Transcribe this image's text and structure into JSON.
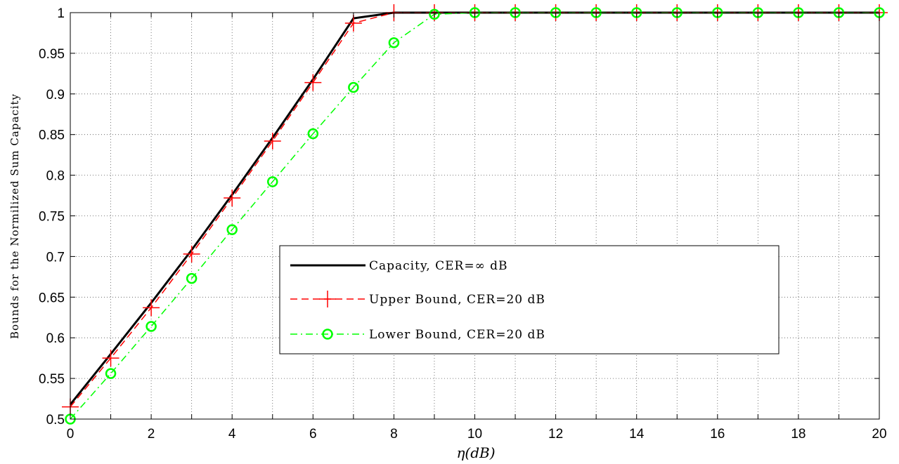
{
  "chart_data": {
    "type": "line",
    "xlabel": "η(dB)",
    "ylabel": "Bounds for the Normilized Sum Capacity",
    "xlim": [
      0,
      20
    ],
    "ylim": [
      0.5,
      1
    ],
    "xticks": [
      "0",
      "2",
      "4",
      "6",
      "8",
      "10",
      "12",
      "14",
      "16",
      "18",
      "20"
    ],
    "yticks": [
      "0.5",
      "0.55",
      "0.6",
      "0.65",
      "0.7",
      "0.75",
      "0.8",
      "0.85",
      "0.9",
      "0.95",
      "1"
    ],
    "grid": true,
    "legend_position": "center-right",
    "x": [
      0,
      1,
      2,
      3,
      4,
      5,
      6,
      7,
      8,
      9,
      10,
      11,
      12,
      13,
      14,
      15,
      16,
      17,
      18,
      19,
      20
    ],
    "series": [
      {
        "name": "Capacity, CER=∞ dB",
        "color": "#000000",
        "style": "solid",
        "marker": "none",
        "values": [
          0.518,
          0.58,
          0.643,
          0.708,
          0.776,
          0.846,
          0.918,
          0.993,
          1,
          1,
          1,
          1,
          1,
          1,
          1,
          1,
          1,
          1,
          1,
          1,
          1
        ]
      },
      {
        "name": "Upper Bound, CER=20 dB",
        "color": "#ff0000",
        "style": "dashed",
        "marker": "plus",
        "values": [
          0.515,
          0.575,
          0.637,
          0.703,
          0.772,
          0.842,
          0.914,
          0.987,
          1,
          1,
          1,
          1,
          1,
          1,
          1,
          1,
          1,
          1,
          1,
          1,
          1
        ]
      },
      {
        "name": "Lower Bound, CER=20 dB",
        "color": "#00ff00",
        "style": "dashdot",
        "marker": "circle",
        "values": [
          0.5,
          0.556,
          0.614,
          0.673,
          0.733,
          0.792,
          0.851,
          0.908,
          0.963,
          0.998,
          1,
          1,
          1,
          1,
          1,
          1,
          1,
          1,
          1,
          1,
          1
        ]
      }
    ]
  }
}
